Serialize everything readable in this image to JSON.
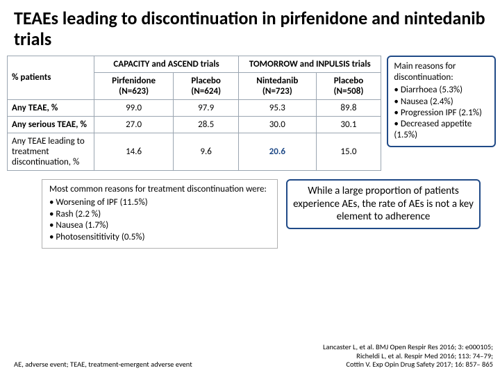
{
  "title": "TEAEs leading to discontinuation in pirfenidone and nintedanib trials",
  "table": {
    "corner": "% patients",
    "group1": "CAPACITY and ASCEND trials",
    "group2": "TOMORROW and INPULSIS trials",
    "sub": [
      "Pirfenidone (N=623)",
      "Placebo (N=624)",
      "Nintedanib (N=723)",
      "Placebo (N=508)"
    ],
    "rows": [
      {
        "label": "Any TEAE, %",
        "v": [
          "99.0",
          "97.9",
          "95.3",
          "89.8"
        ]
      },
      {
        "label": "Any serious TEAE, %",
        "v": [
          "27.0",
          "28.5",
          "30.0",
          "30.1"
        ]
      },
      {
        "label": "Any TEAE leading to treatment discontinuation, %",
        "v": [
          "14.6",
          "9.6",
          "20.6",
          "15.0"
        ]
      }
    ]
  },
  "sidebox": {
    "heading": "Main reasons for discontinuation:",
    "items": [
      "Diarrhoea (5.3%)",
      "Nausea (2.4%)",
      "Progression IPF (2.1%)",
      "Decreased appetite (1.5%)"
    ]
  },
  "reasons": {
    "heading": "Most common reasons for treatment discontinuation were:",
    "items": [
      "Worsening of IPF (11.5%)",
      "Rash (2.2 %)",
      "Nausea (1.7%)",
      "Photosensititivity (0.5%)"
    ]
  },
  "conclusion": "While a large proportion of patients experience AEs, the rate of AEs is not a key element to adherence",
  "abbr": "AE, adverse event; TEAE, treatment-emergent adverse event",
  "refs": [
    "Lancaster L, et al. BMJ Open Respir Res 2016; 3: e000105;",
    "Richeldi L, et al. Respir Med 2016; 113: 74–79;",
    "Cottin V. Exp Opin Drug Safety 2017; 16: 857– 865"
  ]
}
